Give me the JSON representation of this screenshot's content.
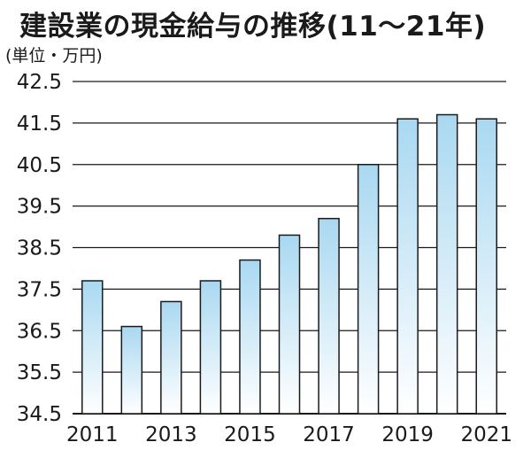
{
  "chart_data": {
    "type": "bar",
    "title": "建設業の現金給与の推移(11～21年)",
    "unit_label": "(単位・万円)",
    "categories": [
      "2011",
      "2012",
      "2013",
      "2014",
      "2015",
      "2016",
      "2017",
      "2018",
      "2019",
      "2020",
      "2021"
    ],
    "x_tick_labels": [
      "2011",
      "2013",
      "2015",
      "2017",
      "2019",
      "2021"
    ],
    "values": [
      37.7,
      36.6,
      37.2,
      37.7,
      38.2,
      38.8,
      39.2,
      40.5,
      41.6,
      41.7,
      41.6
    ],
    "ylim": [
      34.5,
      42.5
    ],
    "y_ticks": [
      "42.5",
      "41.5",
      "40.5",
      "39.5",
      "38.5",
      "37.5",
      "36.5",
      "35.5",
      "34.5"
    ],
    "grid": true,
    "bar_fill": {
      "top": "#a9d8f1",
      "bottom": "#ffffff",
      "stroke": "#1a1a1a"
    }
  }
}
